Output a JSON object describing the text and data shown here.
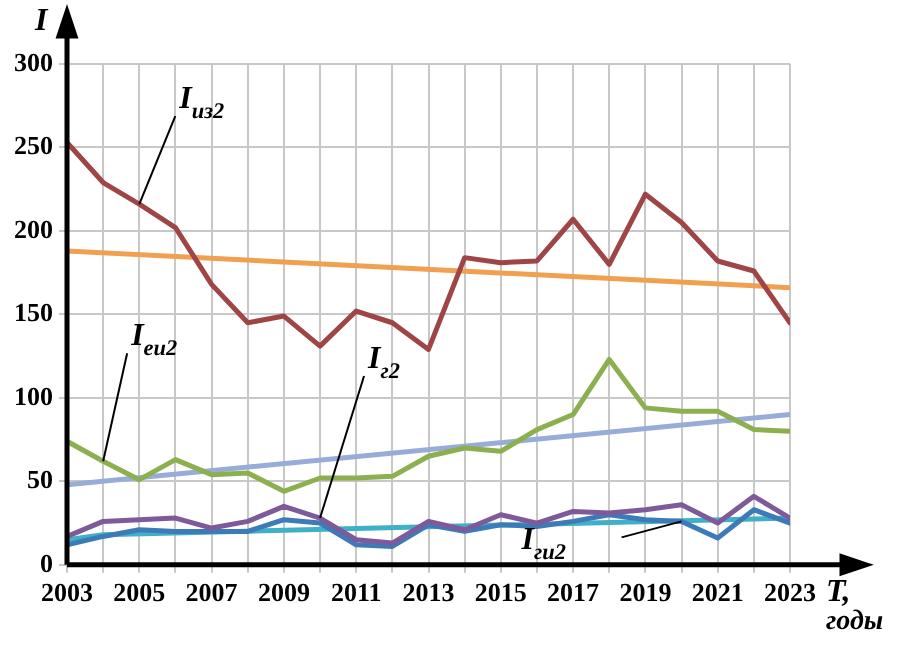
{
  "chart_data": {
    "type": "line",
    "xlabel": "T, годы",
    "ylabel": "I",
    "xlim": [
      2003,
      2023
    ],
    "ylim": [
      0,
      300
    ],
    "xticks": [
      2003,
      {
        "value": 2004,
        "label": null
      },
      2005,
      {
        "value": 2006,
        "label": null
      },
      2007,
      {
        "value": 2008,
        "label": null
      },
      2009,
      {
        "value": 2010,
        "label": null
      },
      2011,
      {
        "value": 2012,
        "label": null
      },
      2013,
      {
        "value": 2014,
        "label": null
      },
      2015,
      {
        "value": 2016,
        "label": null
      },
      2017,
      {
        "value": 2018,
        "label": null
      },
      2019,
      {
        "value": 2020,
        "label": null
      },
      2021,
      {
        "value": 2022,
        "label": null
      },
      2023
    ],
    "yticks": [
      0,
      50,
      100,
      150,
      200,
      250,
      300
    ],
    "grid": true,
    "legend": false,
    "marker": "none",
    "line_style": "solid",
    "x": [
      2003,
      2004,
      2005,
      2006,
      2007,
      2008,
      2009,
      2010,
      2011,
      2012,
      2013,
      2014,
      2015,
      2016,
      2017,
      2018,
      2019,
      2020,
      2021,
      2022,
      2023
    ],
    "series": [
      {
        "name": "I$_{из2}$",
        "color": "#a04545",
        "values": [
          253,
          229,
          216,
          202,
          168,
          145,
          149,
          131,
          152,
          145,
          129,
          184,
          181,
          182,
          207,
          180,
          222,
          205,
          182,
          176,
          145
        ]
      },
      {
        "color": "#f0a050",
        "x": [
          2003,
          2023
        ],
        "values": [
          188,
          166
        ]
      },
      {
        "name": "I$_{еи2}$",
        "color": "#8cb050",
        "values": [
          74,
          62,
          51,
          63,
          54,
          55,
          44,
          52,
          52,
          53,
          65,
          70,
          68,
          81,
          90,
          123,
          94,
          92,
          92,
          81,
          80
        ]
      },
      {
        "color": "#98acd8",
        "x": [
          2003,
          2023
        ],
        "values": [
          48,
          90
        ]
      },
      {
        "name": "I$_{г2}$",
        "color": "#7f5a9a",
        "values": [
          17,
          26,
          27,
          28,
          22,
          26,
          35,
          28,
          15,
          13,
          26,
          21,
          30,
          25,
          32,
          31,
          33,
          36,
          25,
          41,
          28
        ]
      },
      {
        "name": "I$_{ги2}$",
        "color": "#3d7ab8",
        "values": [
          12,
          17,
          21,
          20,
          20,
          20,
          27,
          25,
          12,
          11,
          24,
          20,
          24,
          23,
          26,
          30,
          27,
          26,
          16,
          33,
          25
        ]
      },
      {
        "color": "#40b0c8",
        "x": [
          2003,
          2004,
          2023
        ],
        "values": [
          15,
          18,
          28
        ]
      }
    ]
  }
}
